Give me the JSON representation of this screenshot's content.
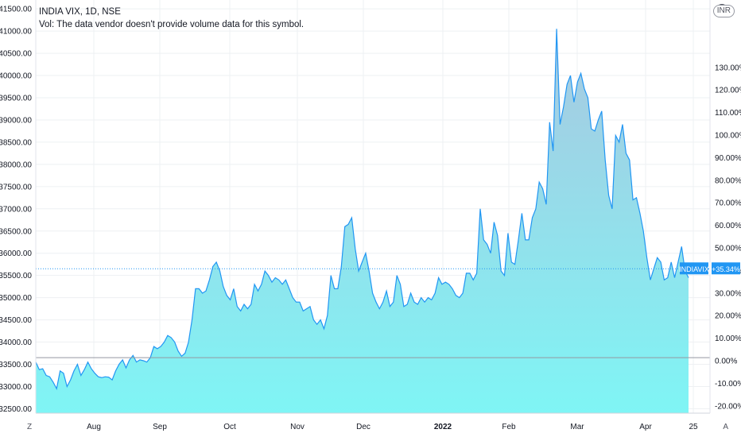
{
  "legend": {
    "symbol": "INDIA VIX, 1D, NSE",
    "volume_note": "Vol: The data vendor doesn't provide volume data for this symbol."
  },
  "chart_data": {
    "type": "area",
    "series": [
      {
        "name": "INDIAVIX",
        "values": [
          33550,
          33380,
          33400,
          33250,
          33220,
          33100,
          32950,
          33350,
          33300,
          33000,
          33150,
          33350,
          33500,
          33250,
          33380,
          33550,
          33400,
          33300,
          33220,
          33200,
          33220,
          33210,
          33150,
          33350,
          33500,
          33600,
          33420,
          33600,
          33700,
          33550,
          33600,
          33580,
          33550,
          33650,
          33900,
          33850,
          33900,
          34000,
          34150,
          34100,
          34000,
          33800,
          33680,
          33750,
          34000,
          34500,
          35200,
          35200,
          35100,
          35150,
          35400,
          35700,
          35800,
          35600,
          35250,
          35050,
          34950,
          35200,
          34800,
          34700,
          34850,
          34750,
          34850,
          35300,
          35150,
          35300,
          35600,
          35500,
          35350,
          35450,
          35400,
          35300,
          35400,
          35200,
          35000,
          34900,
          34900,
          34700,
          34750,
          34800,
          34500,
          34400,
          34500,
          34300,
          34600,
          35500,
          35200,
          35200,
          35700,
          36600,
          36650,
          36800,
          36100,
          35600,
          35800,
          36000,
          35600,
          35100,
          34900,
          34750,
          34900,
          35150,
          34800,
          34900,
          35500,
          35300,
          34800,
          34850,
          35100,
          34900,
          34850,
          35000,
          34900,
          35000,
          34950,
          35100,
          35450,
          35300,
          35350,
          35300,
          35200,
          35050,
          35000,
          35100,
          35550,
          35550,
          35400,
          35550,
          37000,
          36300,
          36200,
          36000,
          36700,
          36400,
          35600,
          35500,
          36450,
          35800,
          35750,
          36300,
          36900,
          36300,
          36300,
          36800,
          37000,
          37600,
          37450,
          37100,
          38950,
          38300,
          41050,
          38900,
          39300,
          39800,
          40000,
          39400,
          39850,
          40050,
          39700,
          39500,
          38800,
          38750,
          39000,
          39200,
          38100,
          37300,
          37000,
          38650,
          38500,
          38900,
          38250,
          38100,
          37200,
          37250,
          36900,
          36500,
          35900,
          35400,
          35650,
          35900,
          35800,
          35400,
          35450,
          35800,
          35450,
          35800,
          36150,
          35600,
          35450
        ],
        "end_label": "INDIAVIX",
        "end_change": "+35.34%"
      }
    ],
    "reference_value": 35650,
    "baseline_value": 33650,
    "left_axis": {
      "range": [
        32400,
        41700
      ],
      "ticks": [
        "41500.00",
        "41000.00",
        "40500.00",
        "40000.00",
        "39500.00",
        "39000.00",
        "38500.00",
        "38000.00",
        "37500.00",
        "37000.00",
        "36500.00",
        "36000.00",
        "35500.00",
        "35000.00",
        "34500.00",
        "34000.00",
        "33500.00",
        "33000.00",
        "32500.00"
      ]
    },
    "right_axis": {
      "ticks": [
        "130.00%",
        "120.00%",
        "110.00%",
        "100.00%",
        "90.00%",
        "80.00%",
        "70.00%",
        "60.00%",
        "50.00%",
        "40.00%",
        "30.00%",
        "20.00%",
        "10.00%",
        "0.00%",
        "-10.00%",
        "-20.00%"
      ]
    },
    "x_axis": {
      "ticks": [
        "Aug",
        "Sep",
        "Oct",
        "Nov",
        "Dec",
        "2022",
        "Feb",
        "Mar",
        "Apr",
        "25"
      ]
    },
    "grid": true,
    "colors": {
      "line": "#2196f3",
      "fill_top": "#a9c8e0",
      "fill_bottom": "#7ff5f5",
      "grid": "#eef0f3",
      "axis_text": "#131722"
    }
  },
  "corners": {
    "bottom_left": "Z",
    "bottom_right": "A",
    "top_right": "INR"
  }
}
